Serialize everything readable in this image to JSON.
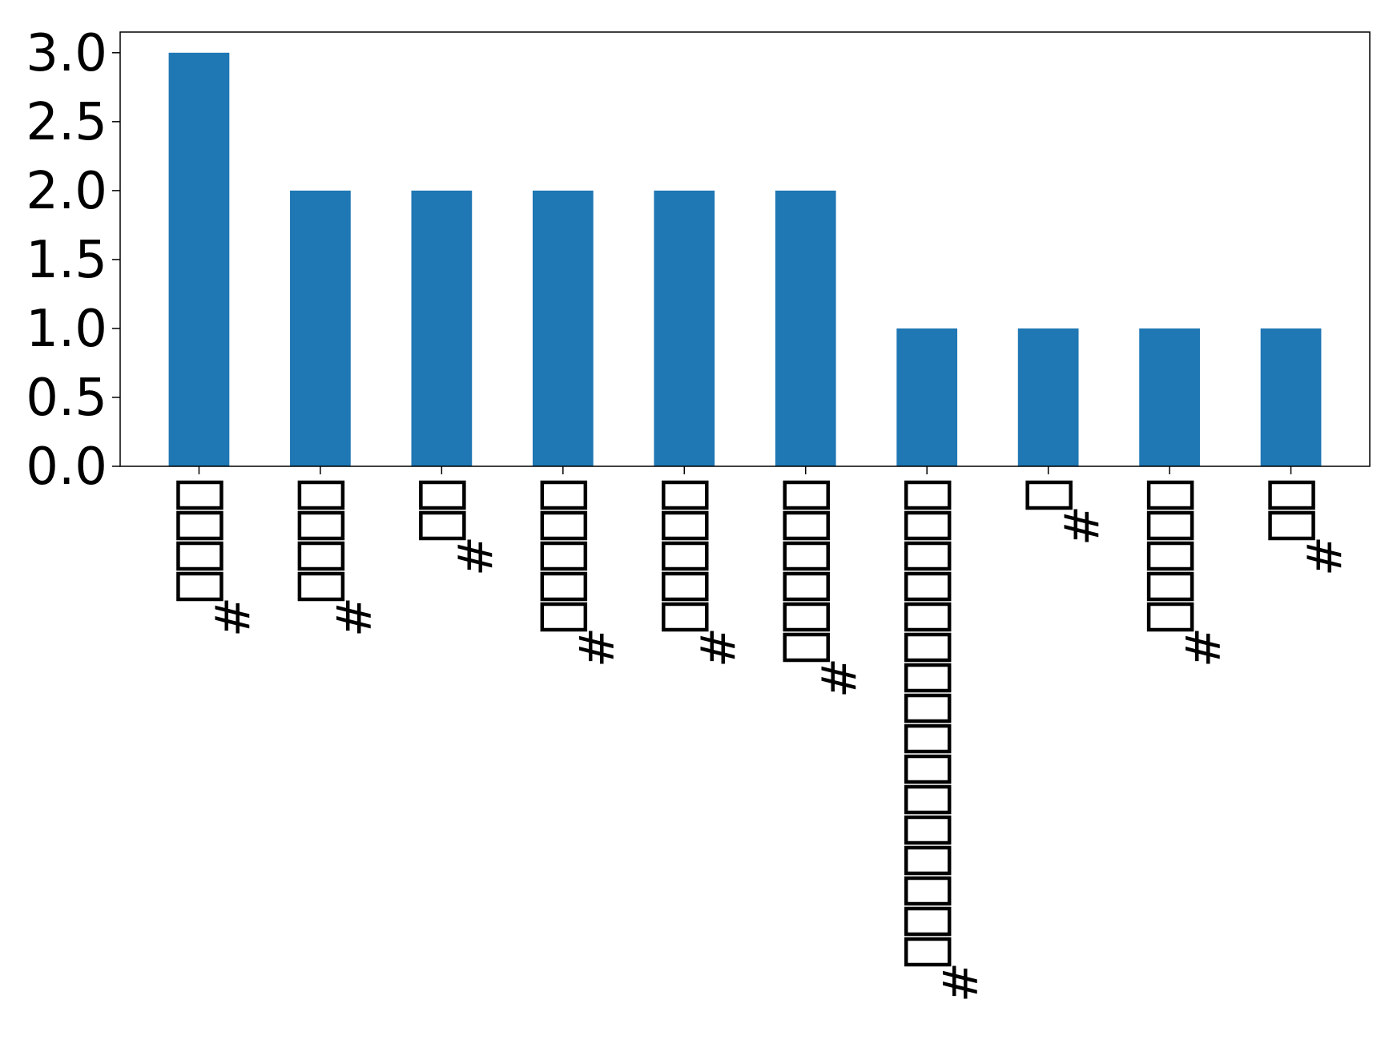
{
  "chart_data": {
    "type": "bar",
    "categories": [
      "#□□□□",
      "#□□□□",
      "#□□",
      "#□□□□□",
      "#□□□□□",
      "#□□□□□□",
      "#□□□□□□□□□□□□□□□□",
      "#□",
      "#□□□□□",
      "#□□"
    ],
    "values": [
      3,
      2,
      2,
      2,
      2,
      2,
      1,
      1,
      1,
      1
    ],
    "title": "",
    "xlabel": "",
    "ylabel": "",
    "ylim": [
      0,
      3.15
    ],
    "yticks": [
      "0.0",
      "0.5",
      "1.0",
      "1.5",
      "2.0",
      "2.5",
      "3.0"
    ],
    "bar_color": "#1f77b4",
    "grid": false,
    "legend": "none"
  }
}
